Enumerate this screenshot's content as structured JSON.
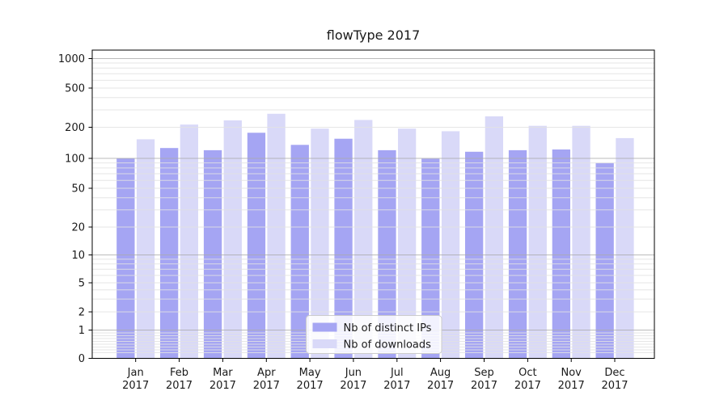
{
  "chart_data": {
    "type": "bar",
    "title": "flowType 2017",
    "categories": [
      "Jan 2017",
      "Feb 2017",
      "Mar 2017",
      "Apr 2017",
      "May 2017",
      "Jun 2017",
      "Jul 2017",
      "Aug 2017",
      "Sep 2017",
      "Oct 2017",
      "Nov 2017",
      "Dec 2017"
    ],
    "series": [
      {
        "name": "Nb of distinct IPs",
        "color": "#a5a5f3",
        "values": [
          100,
          126,
          120,
          177,
          135,
          155,
          120,
          99,
          116,
          120,
          122,
          90
        ]
      },
      {
        "name": "Nb of downloads",
        "color": "#d9d9f8",
        "values": [
          153,
          213,
          235,
          274,
          194,
          237,
          194,
          183,
          258,
          207,
          207,
          157
        ]
      }
    ],
    "xlabel": "",
    "ylabel": "",
    "y_scale": "symlog",
    "y_ticks": [
      0,
      1,
      2,
      5,
      10,
      20,
      50,
      100,
      200,
      500,
      1000
    ],
    "ylim": [
      0,
      1250
    ],
    "grid": "horizontal major and minor gridlines",
    "legend_position": "lower center inside plot"
  },
  "colors": {
    "background": "#ffffff",
    "grid_major": "#aaaaaa",
    "grid_minor": "#e2e2e2",
    "spine": "#000000",
    "text": "#1a1a1a",
    "legend_border": "#cccccc",
    "legend_background": "#ffffff"
  }
}
